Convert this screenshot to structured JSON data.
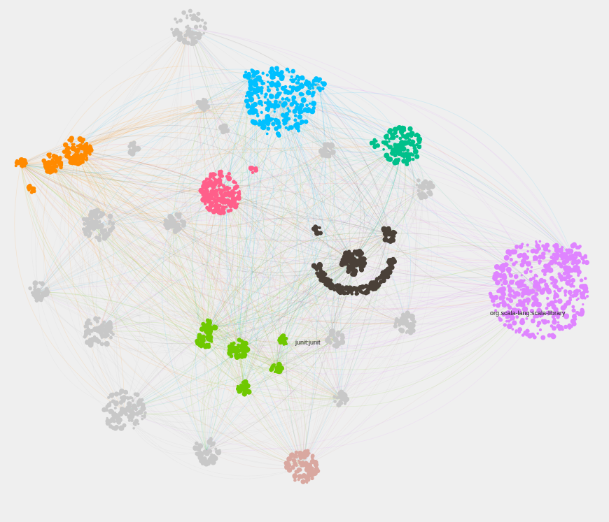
{
  "background": "#efefef",
  "labels": {
    "scala_library": "org.scala-lang:scala-library",
    "junit": "junit:junit"
  },
  "clusters": [
    {
      "id": "cyan-cluster",
      "color": "#00c0ff"
    },
    {
      "id": "teal-cluster",
      "color": "#00c08a"
    },
    {
      "id": "orange-cluster",
      "color": "#ff8a00"
    },
    {
      "id": "pink-cluster",
      "color": "#ff5f8a"
    },
    {
      "id": "dark-cluster",
      "color": "#4a4038"
    },
    {
      "id": "violet-cluster",
      "color": "#df84ff"
    },
    {
      "id": "green-cluster",
      "color": "#6fc800"
    },
    {
      "id": "rose-cluster",
      "color": "#d9a8a0"
    },
    {
      "id": "gray-clusters",
      "color": "#c8c8c8"
    }
  ]
}
